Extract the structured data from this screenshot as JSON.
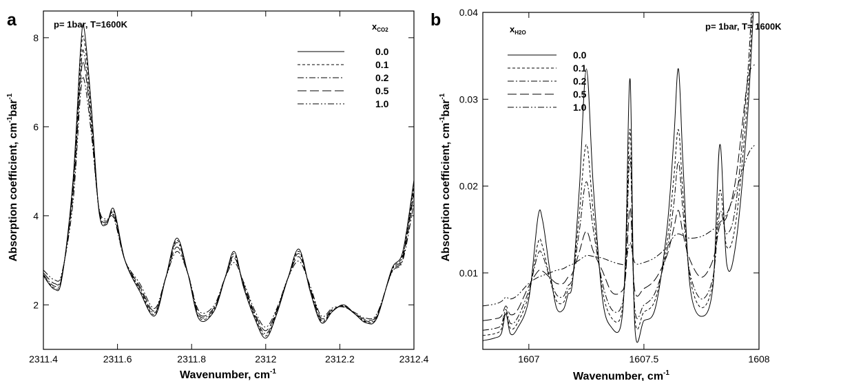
{
  "chart_data": [
    {
      "type": "line",
      "panel_label": "a",
      "annotation": "p= 1bar, T=1600K",
      "xlabel": "Wavenumber, cm",
      "xlabel_sup": "-1",
      "ylabel": "Absorption coefficient, cm",
      "ylabel_sup1": "-1",
      "ylabel_mid": "bar",
      "ylabel_sup2": "-1",
      "xlim": [
        2311.4,
        2312.4
      ],
      "ylim": [
        1.0,
        8.6
      ],
      "x_ticks": [
        2311.4,
        2311.6,
        2311.8,
        2312,
        2312.2,
        2312.4
      ],
      "x_tick_labels": [
        "2311.4",
        "2311.6",
        "2311.8",
        "2312",
        "2312.2",
        "2312.4"
      ],
      "y_ticks": [
        2,
        4,
        6,
        8
      ],
      "y_tick_labels": [
        "2",
        "4",
        "6",
        "8"
      ],
      "legend_title_main": "x",
      "legend_title_sub": "CO2",
      "legend_position": "top-right",
      "grid": false,
      "series": [
        {
          "name": "0.0",
          "dash": "solid",
          "x": [
            2311.4,
            2311.43,
            2311.45,
            2311.48,
            2311.5,
            2311.51,
            2311.53,
            2311.55,
            2311.57,
            2311.59,
            2311.62,
            2311.66,
            2311.7,
            2311.73,
            2311.76,
            2311.79,
            2311.82,
            2311.86,
            2311.89,
            2311.915,
            2311.94,
            2311.97,
            2312.0,
            2312.03,
            2312.06,
            2312.09,
            2312.12,
            2312.15,
            2312.18,
            2312.21,
            2312.24,
            2312.27,
            2312.3,
            2312.34,
            2312.37,
            2312.4
          ],
          "y": [
            2.65,
            2.35,
            2.6,
            4.8,
            7.7,
            8.2,
            6.4,
            4.1,
            3.8,
            4.15,
            3.0,
            2.3,
            1.75,
            2.6,
            3.5,
            2.7,
            1.68,
            1.85,
            2.6,
            3.2,
            2.4,
            1.7,
            1.25,
            1.8,
            2.6,
            3.25,
            2.3,
            1.6,
            1.85,
            2.0,
            1.8,
            1.6,
            1.7,
            2.8,
            3.2,
            4.8
          ]
        },
        {
          "name": "0.1",
          "dash": "short",
          "x": [
            2311.4,
            2311.43,
            2311.45,
            2311.48,
            2311.5,
            2311.51,
            2311.53,
            2311.55,
            2311.57,
            2311.59,
            2311.62,
            2311.66,
            2311.7,
            2311.73,
            2311.76,
            2311.79,
            2311.82,
            2311.86,
            2311.89,
            2311.915,
            2311.94,
            2311.97,
            2312.0,
            2312.03,
            2312.06,
            2312.09,
            2312.12,
            2312.15,
            2312.18,
            2312.21,
            2312.24,
            2312.27,
            2312.3,
            2312.34,
            2312.37,
            2312.4
          ],
          "y": [
            2.66,
            2.38,
            2.62,
            4.7,
            7.5,
            7.95,
            6.3,
            4.12,
            3.82,
            4.1,
            3.0,
            2.34,
            1.78,
            2.6,
            3.45,
            2.7,
            1.72,
            1.87,
            2.6,
            3.15,
            2.42,
            1.74,
            1.3,
            1.82,
            2.6,
            3.2,
            2.32,
            1.63,
            1.86,
            1.98,
            1.8,
            1.62,
            1.72,
            2.78,
            3.15,
            4.7
          ]
        },
        {
          "name": "0.2",
          "dash": "dashdot",
          "x": [
            2311.4,
            2311.43,
            2311.45,
            2311.48,
            2311.5,
            2311.51,
            2311.53,
            2311.55,
            2311.57,
            2311.59,
            2311.62,
            2311.66,
            2311.7,
            2311.73,
            2311.76,
            2311.79,
            2311.82,
            2311.86,
            2311.89,
            2311.915,
            2311.94,
            2311.97,
            2312.0,
            2312.03,
            2312.06,
            2312.09,
            2312.12,
            2312.15,
            2312.18,
            2312.21,
            2312.24,
            2312.27,
            2312.3,
            2312.34,
            2312.37,
            2312.4
          ],
          "y": [
            2.68,
            2.42,
            2.64,
            4.6,
            7.2,
            7.65,
            6.1,
            4.14,
            3.85,
            4.05,
            3.0,
            2.38,
            1.82,
            2.6,
            3.4,
            2.7,
            1.76,
            1.9,
            2.6,
            3.1,
            2.45,
            1.78,
            1.35,
            1.85,
            2.6,
            3.15,
            2.35,
            1.66,
            1.88,
            1.97,
            1.8,
            1.64,
            1.74,
            2.76,
            3.1,
            4.6
          ]
        },
        {
          "name": "0.5",
          "dash": "long",
          "x": [
            2311.4,
            2311.43,
            2311.45,
            2311.48,
            2311.5,
            2311.51,
            2311.53,
            2311.55,
            2311.57,
            2311.59,
            2311.62,
            2311.66,
            2311.7,
            2311.73,
            2311.76,
            2311.79,
            2311.82,
            2311.86,
            2311.89,
            2311.915,
            2311.94,
            2311.97,
            2312.0,
            2312.03,
            2312.06,
            2312.09,
            2312.12,
            2312.15,
            2312.18,
            2312.21,
            2312.24,
            2312.27,
            2312.3,
            2312.34,
            2312.37,
            2312.4
          ],
          "y": [
            2.72,
            2.48,
            2.67,
            4.5,
            7.0,
            7.4,
            5.95,
            4.15,
            3.88,
            4.0,
            3.0,
            2.42,
            1.86,
            2.6,
            3.3,
            2.7,
            1.8,
            1.93,
            2.6,
            3.05,
            2.48,
            1.82,
            1.42,
            1.88,
            2.6,
            3.08,
            2.38,
            1.7,
            1.9,
            1.96,
            1.81,
            1.67,
            1.77,
            2.74,
            3.05,
            4.5
          ]
        },
        {
          "name": "1.0",
          "dash": "dashdotdot",
          "x": [
            2311.4,
            2311.43,
            2311.45,
            2311.48,
            2311.5,
            2311.51,
            2311.53,
            2311.55,
            2311.57,
            2311.59,
            2311.62,
            2311.66,
            2311.7,
            2311.73,
            2311.76,
            2311.79,
            2311.82,
            2311.86,
            2311.89,
            2311.915,
            2311.94,
            2311.97,
            2312.0,
            2312.03,
            2312.06,
            2312.09,
            2312.12,
            2312.15,
            2312.18,
            2312.21,
            2312.24,
            2312.27,
            2312.3,
            2312.34,
            2312.37,
            2312.4
          ],
          "y": [
            2.78,
            2.56,
            2.72,
            4.3,
            6.7,
            7.05,
            5.8,
            4.18,
            3.92,
            3.95,
            3.0,
            2.48,
            1.92,
            2.6,
            3.2,
            2.7,
            1.86,
            1.98,
            2.6,
            2.95,
            2.52,
            1.88,
            1.5,
            1.92,
            2.6,
            2.98,
            2.42,
            1.75,
            1.93,
            1.95,
            1.83,
            1.7,
            1.8,
            2.72,
            3.0,
            4.3
          ]
        }
      ]
    },
    {
      "type": "line",
      "panel_label": "b",
      "annotation": "p= 1bar, T= 1600K",
      "xlabel": "Wavenumber, cm",
      "xlabel_sup": "-1",
      "ylabel": "Absorption coefficient, cm",
      "ylabel_sup1": "-1",
      "ylabel_mid": "bar",
      "ylabel_sup2": "-1",
      "xlim": [
        1606.8,
        1608.0
      ],
      "ylim": [
        0.0012,
        0.04
      ],
      "x_ticks": [
        1607,
        1607.5,
        1608
      ],
      "x_tick_labels": [
        "1607",
        "1607.5",
        "1608"
      ],
      "y_ticks": [
        0.01,
        0.02,
        0.03,
        0.04
      ],
      "y_tick_labels": [
        "0.01",
        "0.02",
        "0.03",
        "0.04"
      ],
      "legend_title_main": "x",
      "legend_title_sub": "H2O",
      "legend_position": "top-left",
      "grid": false,
      "series": [
        {
          "name": "0.0",
          "dash": "solid",
          "x": [
            1606.8,
            1606.85,
            1606.88,
            1606.9,
            1606.92,
            1606.95,
            1607.0,
            1607.04,
            1607.06,
            1607.09,
            1607.12,
            1607.15,
            1607.17,
            1607.19,
            1607.22,
            1607.25,
            1607.28,
            1607.32,
            1607.36,
            1607.4,
            1607.42,
            1607.44,
            1607.46,
            1607.5,
            1607.55,
            1607.6,
            1607.63,
            1607.65,
            1607.67,
            1607.7,
            1607.75,
            1607.8,
            1607.83,
            1607.86,
            1607.9,
            1607.95,
            1607.98
          ],
          "y": [
            0.0022,
            0.0025,
            0.003,
            0.0053,
            0.003,
            0.0036,
            0.007,
            0.0165,
            0.016,
            0.0105,
            0.006,
            0.0058,
            0.0075,
            0.009,
            0.02,
            0.0335,
            0.02,
            0.007,
            0.0037,
            0.004,
            0.012,
            0.0323,
            0.004,
            0.0045,
            0.006,
            0.015,
            0.0255,
            0.0335,
            0.0225,
            0.0085,
            0.005,
            0.0085,
            0.0248,
            0.011,
            0.0135,
            0.028,
            0.0425
          ]
        },
        {
          "name": "0.1",
          "dash": "short",
          "x": [
            1606.8,
            1606.85,
            1606.88,
            1606.9,
            1606.92,
            1606.95,
            1607.0,
            1607.04,
            1607.06,
            1607.09,
            1607.12,
            1607.15,
            1607.17,
            1607.19,
            1607.22,
            1607.25,
            1607.28,
            1607.32,
            1607.36,
            1607.4,
            1607.42,
            1607.44,
            1607.46,
            1607.5,
            1607.55,
            1607.6,
            1607.63,
            1607.65,
            1607.67,
            1607.7,
            1607.75,
            1607.8,
            1607.83,
            1607.86,
            1607.9,
            1607.95,
            1607.98
          ],
          "y": [
            0.0028,
            0.003,
            0.0035,
            0.0055,
            0.0036,
            0.0042,
            0.0075,
            0.0135,
            0.013,
            0.0095,
            0.0068,
            0.0066,
            0.008,
            0.0092,
            0.017,
            0.0248,
            0.017,
            0.008,
            0.0048,
            0.005,
            0.011,
            0.0265,
            0.005,
            0.0055,
            0.007,
            0.0135,
            0.021,
            0.0265,
            0.019,
            0.0095,
            0.006,
            0.009,
            0.0195,
            0.013,
            0.016,
            0.03,
            0.045
          ]
        },
        {
          "name": "0.2",
          "dash": "dashdot",
          "x": [
            1606.8,
            1606.85,
            1606.88,
            1606.9,
            1606.92,
            1606.95,
            1607.0,
            1607.04,
            1607.06,
            1607.09,
            1607.12,
            1607.15,
            1607.17,
            1607.19,
            1607.22,
            1607.25,
            1607.28,
            1607.32,
            1607.36,
            1607.4,
            1607.42,
            1607.44,
            1607.46,
            1607.5,
            1607.55,
            1607.6,
            1607.63,
            1607.65,
            1607.67,
            1607.7,
            1607.75,
            1607.8,
            1607.83,
            1607.86,
            1607.9,
            1607.95,
            1607.98
          ],
          "y": [
            0.0034,
            0.0036,
            0.004,
            0.0058,
            0.0042,
            0.0048,
            0.008,
            0.0122,
            0.012,
            0.0095,
            0.0075,
            0.0073,
            0.0085,
            0.0095,
            0.015,
            0.0205,
            0.015,
            0.0088,
            0.0058,
            0.006,
            0.01,
            0.0235,
            0.006,
            0.0063,
            0.0078,
            0.0125,
            0.018,
            0.0228,
            0.017,
            0.01,
            0.007,
            0.0095,
            0.017,
            0.0145,
            0.018,
            0.0325,
            0.047
          ]
        },
        {
          "name": "0.5",
          "dash": "long",
          "x": [
            1606.8,
            1606.85,
            1606.88,
            1606.9,
            1606.92,
            1606.95,
            1607.0,
            1607.04,
            1607.06,
            1607.09,
            1607.12,
            1607.15,
            1607.17,
            1607.19,
            1607.22,
            1607.25,
            1607.28,
            1607.32,
            1607.36,
            1607.4,
            1607.42,
            1607.44,
            1607.46,
            1607.5,
            1607.55,
            1607.6,
            1607.63,
            1607.65,
            1607.67,
            1607.7,
            1607.75,
            1607.8,
            1607.83,
            1607.86,
            1607.9,
            1607.95,
            1607.98
          ],
          "y": [
            0.0045,
            0.0047,
            0.005,
            0.0062,
            0.0052,
            0.0057,
            0.0085,
            0.0102,
            0.0102,
            0.0095,
            0.0088,
            0.0088,
            0.0095,
            0.01,
            0.0125,
            0.0148,
            0.0125,
            0.0102,
            0.0078,
            0.0078,
            0.0095,
            0.0175,
            0.008,
            0.0082,
            0.0093,
            0.012,
            0.0152,
            0.0172,
            0.0145,
            0.0115,
            0.0095,
            0.0115,
            0.0155,
            0.0165,
            0.021,
            0.032,
            0.034
          ]
        },
        {
          "name": "1.0",
          "dash": "dashdotdot",
          "x": [
            1606.8,
            1606.85,
            1606.88,
            1606.9,
            1606.92,
            1606.95,
            1607.0,
            1607.04,
            1607.06,
            1607.09,
            1607.12,
            1607.15,
            1607.17,
            1607.19,
            1607.22,
            1607.25,
            1607.28,
            1607.32,
            1607.36,
            1607.4,
            1607.42,
            1607.44,
            1607.46,
            1607.5,
            1607.55,
            1607.6,
            1607.63,
            1607.65,
            1607.67,
            1607.7,
            1607.75,
            1607.8,
            1607.83,
            1607.86,
            1607.9,
            1607.95,
            1607.98
          ],
          "y": [
            0.0062,
            0.0064,
            0.0067,
            0.0072,
            0.007,
            0.0074,
            0.0088,
            0.0095,
            0.0097,
            0.01,
            0.0103,
            0.0105,
            0.0108,
            0.011,
            0.0115,
            0.012,
            0.0119,
            0.0117,
            0.0113,
            0.011,
            0.0112,
            0.0135,
            0.0112,
            0.0112,
            0.0118,
            0.013,
            0.0142,
            0.0145,
            0.0143,
            0.014,
            0.0142,
            0.015,
            0.0158,
            0.0168,
            0.0195,
            0.0235,
            0.0247
          ]
        }
      ]
    }
  ]
}
